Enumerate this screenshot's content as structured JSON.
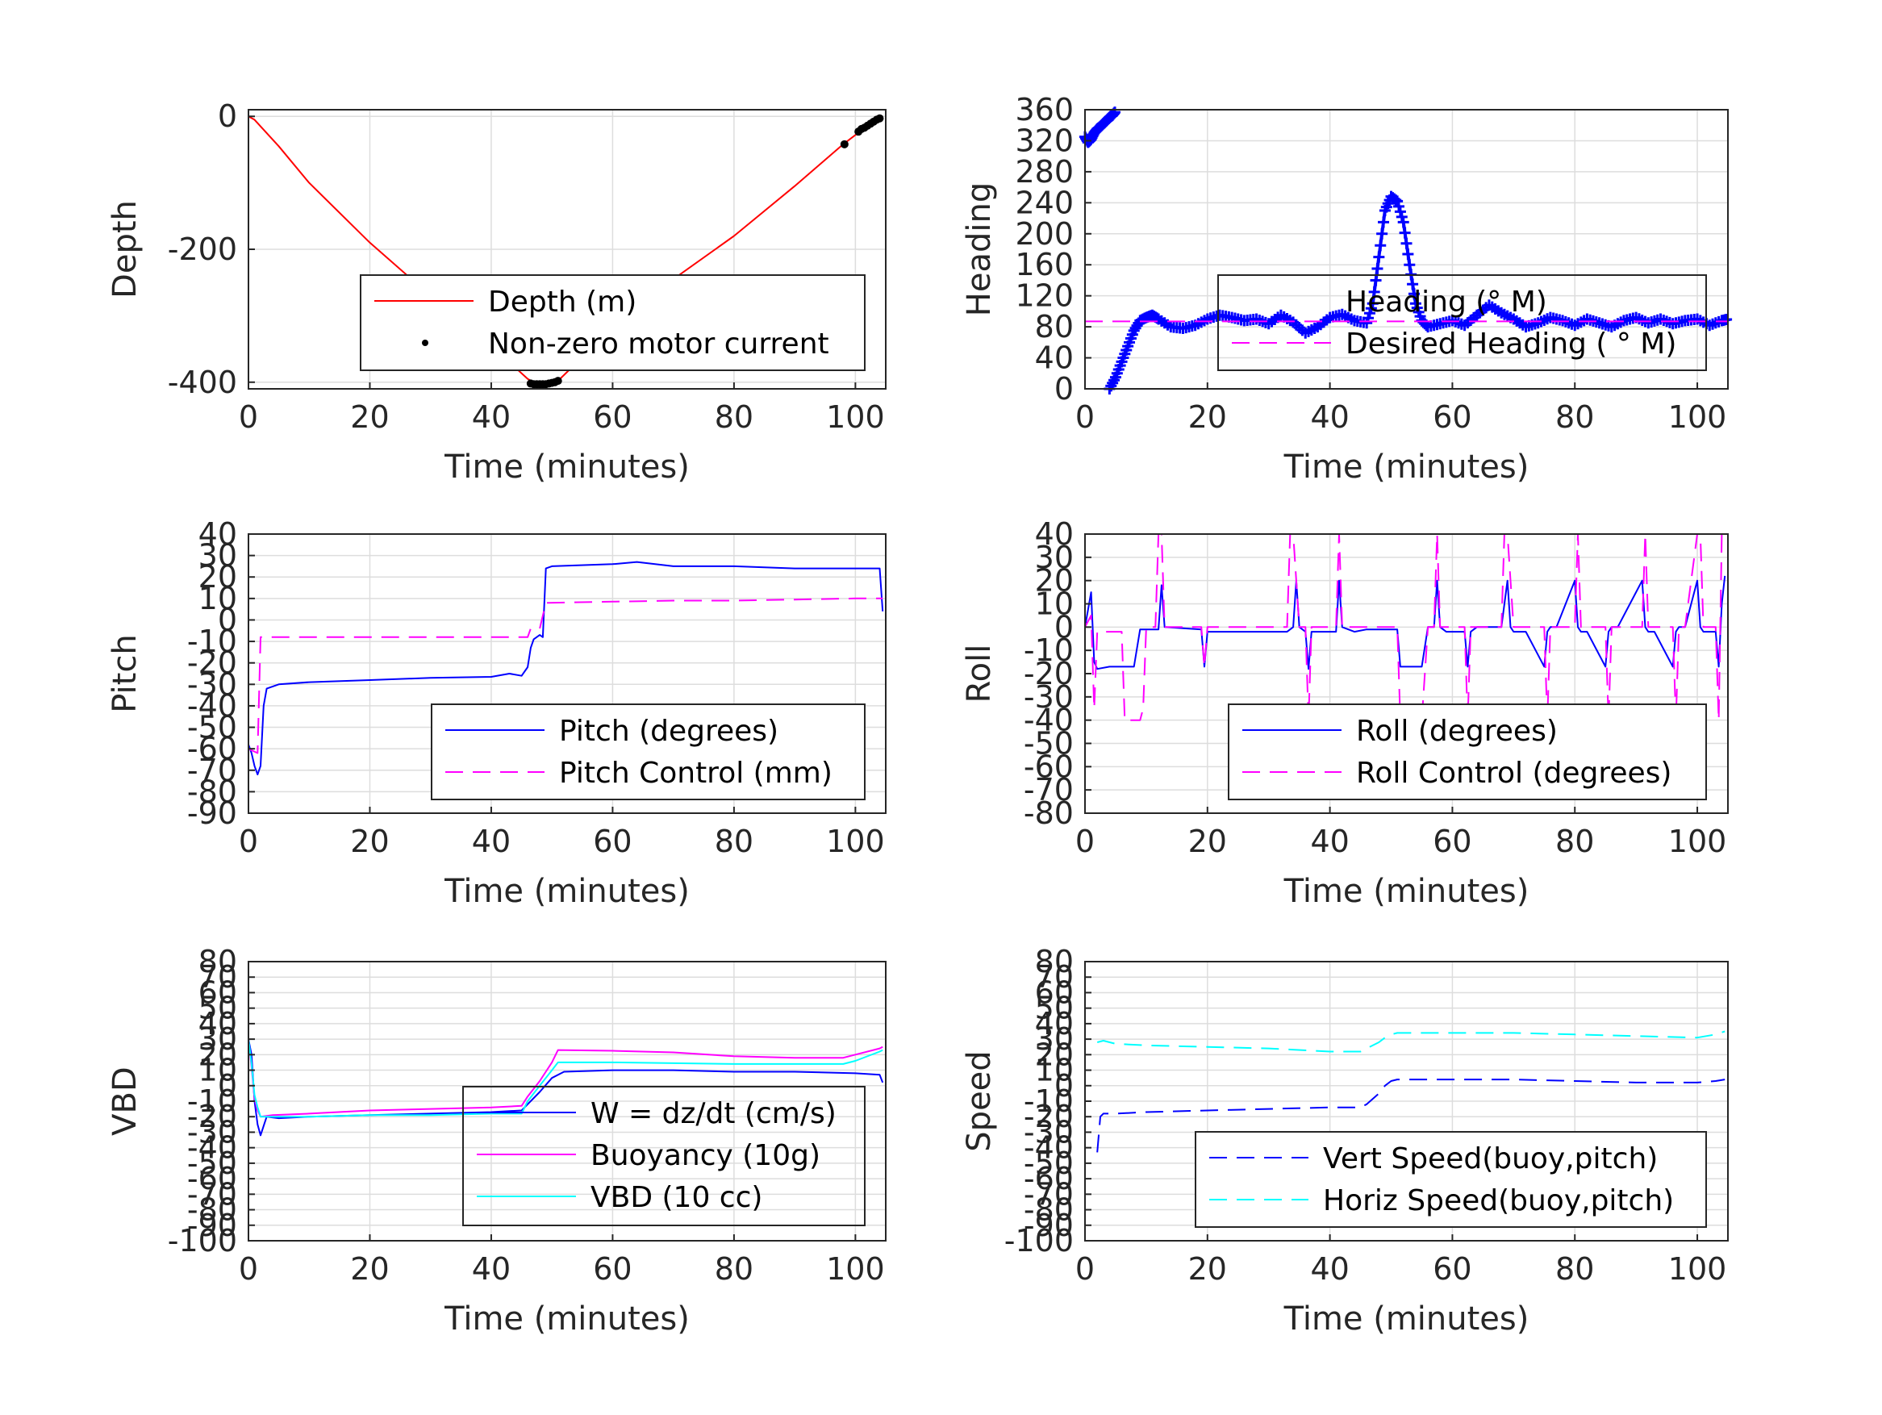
{
  "chart_data": [
    {
      "id": "depth",
      "type": "line",
      "xlabel": "Time (minutes)",
      "ylabel": "Depth",
      "xlim": [
        0,
        105
      ],
      "ylim": [
        -410,
        10
      ],
      "xticks": [
        0,
        20,
        40,
        60,
        80,
        100
      ],
      "yticks": [
        0,
        -200,
        -400
      ],
      "grid": true,
      "legend_position": "bottom-right",
      "series": [
        {
          "name": "Depth (m)",
          "color": "#ff0000",
          "style": "solid",
          "x": [
            0,
            1,
            5,
            10,
            20,
            30,
            40,
            46,
            47.5,
            50,
            51,
            60,
            70,
            80,
            90,
            98,
            100,
            103,
            104.5
          ],
          "y": [
            0,
            -5,
            -45,
            -100,
            -190,
            -270,
            -345,
            -395,
            -403,
            -402,
            -398,
            -318,
            -245,
            -180,
            -105,
            -42,
            -28,
            -10,
            0
          ]
        },
        {
          "name": "Non-zero motor current",
          "color": "#000000",
          "style": "dots",
          "x": [
            46.5,
            47,
            47.5,
            48,
            48.5,
            49,
            49.5,
            50,
            50.5,
            51,
            98.2,
            100.5,
            101,
            101.5,
            102,
            102.5,
            103,
            103.5,
            104
          ],
          "y": [
            -402,
            -403,
            -403,
            -403,
            -403,
            -403,
            -402,
            -401,
            -400,
            -398,
            -42,
            -23,
            -19,
            -17,
            -14,
            -11,
            -8,
            -5,
            -3
          ]
        }
      ]
    },
    {
      "id": "heading",
      "type": "line",
      "xlabel": "Time (minutes)",
      "ylabel": "Heading",
      "xlim": [
        0,
        105
      ],
      "ylim": [
        0,
        360
      ],
      "xticks": [
        0,
        20,
        40,
        60,
        80,
        100
      ],
      "yticks": [
        0,
        40,
        80,
        120,
        160,
        200,
        240,
        280,
        320,
        360
      ],
      "grid": true,
      "legend_position": "center-right",
      "series": [
        {
          "name": "Heading (° M)",
          "color": "#0000ff",
          "style": "plus",
          "segments": [
            {
              "x": [
                0,
                0.5,
                1,
                1.5,
                2,
                2.5,
                3,
                3.5,
                4,
                4.5,
                5
              ],
              "y": [
                325,
                318,
                322,
                330,
                335,
                338,
                342,
                346,
                350,
                353,
                358
              ]
            },
            {
              "x": [
                4,
                5,
                6,
                7,
                8,
                9,
                10,
                11,
                12,
                14,
                16,
                18,
                20,
                22,
                24,
                26,
                28,
                30,
                32,
                34,
                36,
                38,
                40,
                42,
                44,
                46,
                47,
                48,
                49,
                50,
                51,
                52,
                53,
                54,
                55,
                56,
                58,
                60,
                62,
                64,
                66,
                68,
                70,
                72,
                74,
                76,
                78,
                80,
                82,
                84,
                86,
                88,
                90,
                92,
                94,
                96,
                98,
                100,
                102,
                104,
                105
              ],
              "y": [
                0,
                15,
                35,
                55,
                75,
                88,
                92,
                95,
                90,
                80,
                78,
                82,
                90,
                95,
                92,
                88,
                90,
                84,
                95,
                86,
                72,
                80,
                92,
                96,
                88,
                85,
                110,
                170,
                230,
                248,
                242,
                215,
                160,
                110,
                88,
                80,
                84,
                88,
                82,
                95,
                108,
                98,
                90,
                80,
                85,
                92,
                88,
                82,
                90,
                85,
                80,
                88,
                92,
                85,
                90,
                84,
                88,
                90,
                82,
                88,
                90
              ]
            }
          ]
        },
        {
          "name": "Desired Heading ( ° M)",
          "color": "#ff00ff",
          "style": "dashed",
          "x": [
            0,
            105
          ],
          "y": [
            87,
            87
          ]
        }
      ]
    },
    {
      "id": "pitch",
      "type": "line",
      "xlabel": "Time (minutes)",
      "ylabel": "Pitch",
      "xlim": [
        0,
        105
      ],
      "ylim": [
        -90,
        40
      ],
      "xticks": [
        0,
        20,
        40,
        60,
        80,
        100
      ],
      "yticks": [
        40,
        30,
        20,
        10,
        0,
        -10,
        -20,
        -30,
        -40,
        -50,
        -60,
        -70,
        -80,
        -90
      ],
      "grid": true,
      "legend_position": "bottom-right",
      "series": [
        {
          "name": "Pitch (degrees)",
          "color": "#0000ff",
          "style": "solid",
          "x": [
            0,
            0.5,
            1,
            1.5,
            2,
            2.5,
            3,
            5,
            10,
            20,
            30,
            40,
            43,
            45,
            46,
            46.5,
            47,
            48,
            48.5,
            49,
            50,
            60,
            64,
            70,
            80,
            90,
            100,
            104,
            104.5
          ],
          "y": [
            -58,
            -62,
            -68,
            -72,
            -68,
            -40,
            -32,
            -30,
            -29,
            -28,
            -27,
            -26.5,
            -25,
            -26,
            -22,
            -13,
            -9,
            -7,
            -8,
            24,
            25,
            26,
            27,
            25,
            25,
            24,
            24,
            24,
            4
          ]
        },
        {
          "name": "Pitch Control (mm)",
          "color": "#ff00ff",
          "style": "dashed",
          "x": [
            0,
            1.5,
            2,
            46,
            46.5,
            47,
            48,
            49,
            49.5,
            60,
            70,
            80,
            90,
            100,
            104.5
          ],
          "y": [
            -60,
            -62,
            -8,
            -8,
            -4,
            -4,
            -4,
            8,
            8,
            8.5,
            9,
            9,
            9.5,
            10,
            10
          ]
        }
      ]
    },
    {
      "id": "roll",
      "type": "line",
      "xlabel": "Time (minutes)",
      "ylabel": "Roll",
      "xlim": [
        0,
        105
      ],
      "ylim": [
        -80,
        40
      ],
      "xticks": [
        0,
        20,
        40,
        60,
        80,
        100
      ],
      "yticks": [
        40,
        30,
        20,
        10,
        0,
        -10,
        -20,
        -30,
        -40,
        -50,
        -60,
        -70,
        -80
      ],
      "grid": true,
      "legend_position": "bottom-right",
      "series": [
        {
          "name": "Roll (degrees)",
          "color": "#0000ff",
          "style": "solid",
          "x": [
            0,
            1,
            1.5,
            2,
            4,
            8,
            9,
            12,
            12.5,
            13,
            19,
            19.5,
            20,
            33,
            34,
            34.5,
            35,
            36,
            36.5,
            37,
            41,
            41.5,
            42,
            44,
            46,
            51,
            51.5,
            55,
            56,
            57,
            57.5,
            58,
            59,
            62,
            62.5,
            63,
            64,
            68,
            69,
            69.5,
            70,
            72,
            75,
            75.5,
            76,
            77,
            80,
            80.5,
            81,
            82,
            85,
            85.5,
            86,
            87,
            91,
            91.5,
            92,
            93,
            96,
            96.5,
            97,
            98,
            100,
            100.5,
            101,
            103,
            103.5,
            104,
            104.5
          ],
          "y": [
            0,
            15,
            -15,
            -18,
            -17,
            -17,
            -1,
            -1,
            18,
            0,
            -1,
            -17,
            -2,
            -2,
            0,
            20,
            0,
            -2,
            -18,
            -2,
            -2,
            20,
            0,
            -2,
            -1,
            -1,
            -17,
            -17,
            0,
            0,
            20,
            0,
            -2,
            -2,
            -17,
            -2,
            0,
            0,
            20,
            0,
            -2,
            -2,
            -17,
            -2,
            0,
            0,
            20,
            0,
            -2,
            -2,
            -17,
            -2,
            0,
            0,
            20,
            0,
            -2,
            -2,
            -17,
            -2,
            0,
            0,
            20,
            0,
            -2,
            -2,
            -17,
            10,
            22
          ]
        },
        {
          "name": "Roll Control (degrees)",
          "color": "#ff00ff",
          "style": "dashed",
          "x": [
            0,
            1,
            1.5,
            2,
            6,
            6.5,
            9,
            9.5,
            10,
            11.5,
            12,
            12.5,
            13,
            19,
            19.5,
            20,
            33,
            33.5,
            34,
            35,
            36,
            36.5,
            37,
            41,
            41.5,
            42,
            51,
            51.5,
            55,
            56,
            57,
            57.5,
            58,
            59,
            62,
            62.5,
            63,
            64,
            68,
            68.5,
            69,
            70,
            72,
            75,
            75.5,
            76,
            77,
            80,
            80.5,
            81,
            82,
            85,
            85.5,
            86,
            87,
            91,
            91.5,
            92,
            93,
            96,
            96.5,
            97,
            98,
            100,
            100.5,
            101,
            103,
            103.5,
            104,
            104.5
          ],
          "y": [
            0,
            5,
            -35,
            -2,
            -2,
            -40,
            -40,
            -35,
            0,
            0,
            40,
            40,
            0,
            0,
            -17,
            0,
            0,
            40,
            40,
            0,
            0,
            -40,
            0,
            0,
            40,
            0,
            0,
            -40,
            -40,
            0,
            0,
            40,
            0,
            0,
            0,
            -40,
            0,
            0,
            0,
            40,
            40,
            0,
            0,
            0,
            -40,
            0,
            0,
            0,
            40,
            0,
            0,
            0,
            -40,
            0,
            0,
            0,
            40,
            0,
            0,
            0,
            -40,
            0,
            0,
            40,
            40,
            0,
            0,
            -40,
            40,
            40
          ]
        }
      ]
    },
    {
      "id": "vbd",
      "type": "line",
      "xlabel": "Time (minutes)",
      "ylabel": "VBD",
      "xlim": [
        0,
        105
      ],
      "ylim": [
        -100,
        80
      ],
      "xticks": [
        0,
        20,
        40,
        60,
        80,
        100
      ],
      "yticks": [
        80,
        70,
        60,
        50,
        40,
        30,
        20,
        10,
        0,
        -10,
        -20,
        -30,
        -40,
        -50,
        -60,
        -70,
        -80,
        -90,
        -100
      ],
      "grid": true,
      "legend_position": "bottom-right",
      "series": [
        {
          "name": "W = dz/dt (cm/s)",
          "color": "#0000ff",
          "style": "solid",
          "x": [
            0,
            0.5,
            1,
            1.5,
            2,
            3,
            5,
            10,
            20,
            30,
            40,
            45,
            46,
            48,
            50,
            52,
            60,
            70,
            80,
            90,
            100,
            104,
            104.5
          ],
          "y": [
            30,
            20,
            -10,
            -25,
            -32,
            -20,
            -21,
            -20,
            -19,
            -18,
            -17,
            -16,
            -12,
            -4,
            5,
            9,
            10,
            10,
            9,
            9,
            8,
            7,
            2
          ]
        },
        {
          "name": "Buoyancy (10g)",
          "color": "#ff00ff",
          "style": "solid",
          "x": [
            0,
            0.5,
            1,
            1.5,
            2,
            4,
            10,
            20,
            30,
            40,
            45,
            46,
            48,
            50,
            51,
            60,
            70,
            80,
            90,
            98,
            100,
            104,
            104.5
          ],
          "y": [
            30,
            12,
            -8,
            -16,
            -20,
            -19,
            -18,
            -16,
            -15,
            -14,
            -13,
            -7,
            3,
            15,
            23,
            22.5,
            21.5,
            19,
            18,
            18,
            20,
            24,
            25
          ]
        },
        {
          "name": "VBD (10 cc)",
          "color": "#00ffff",
          "style": "solid",
          "x": [
            0,
            0.5,
            1,
            1.5,
            2,
            4,
            10,
            20,
            30,
            40,
            45,
            46,
            48,
            50,
            51,
            60,
            70,
            80,
            90,
            98,
            100,
            104,
            104.5
          ],
          "y": [
            30,
            14,
            -6,
            -14,
            -20,
            -20,
            -20,
            -19,
            -19,
            -18,
            -18,
            -10,
            0,
            10,
            15,
            15,
            14.5,
            14,
            14,
            14,
            16,
            22,
            23
          ]
        }
      ]
    },
    {
      "id": "speed",
      "type": "line",
      "xlabel": "Time (minutes)",
      "ylabel": "Speed",
      "xlim": [
        0,
        105
      ],
      "ylim": [
        -100,
        80
      ],
      "xticks": [
        0,
        20,
        40,
        60,
        80,
        100
      ],
      "yticks": [
        80,
        70,
        60,
        50,
        40,
        30,
        20,
        10,
        0,
        -10,
        -20,
        -30,
        -40,
        -50,
        -60,
        -70,
        -80,
        -90,
        -100
      ],
      "grid": true,
      "legend_position": "bottom-right",
      "series": [
        {
          "name": "Vert Speed(buoy,pitch)",
          "color": "#0000ff",
          "style": "dashed",
          "x": [
            2,
            2.5,
            3,
            5,
            10,
            20,
            30,
            40,
            45,
            46,
            48,
            49,
            50,
            51,
            60,
            70,
            80,
            90,
            100,
            103,
            104.5
          ],
          "y": [
            -43,
            -20,
            -18,
            -18,
            -17,
            -16,
            -15,
            -14,
            -14,
            -12,
            -5,
            0,
            3,
            4,
            4,
            4,
            3,
            2,
            2,
            3,
            4
          ]
        },
        {
          "name": "Horiz Speed(buoy,pitch)",
          "color": "#00ffff",
          "style": "dashed",
          "x": [
            2,
            3,
            5,
            10,
            20,
            30,
            40,
            45,
            46,
            48,
            49,
            50,
            51,
            60,
            70,
            80,
            90,
            100,
            103,
            104.5
          ],
          "y": [
            28,
            29,
            27,
            26,
            25,
            24,
            22,
            22,
            24,
            28,
            31,
            33,
            34,
            34,
            34,
            33,
            32,
            31,
            33,
            35
          ]
        }
      ]
    }
  ]
}
